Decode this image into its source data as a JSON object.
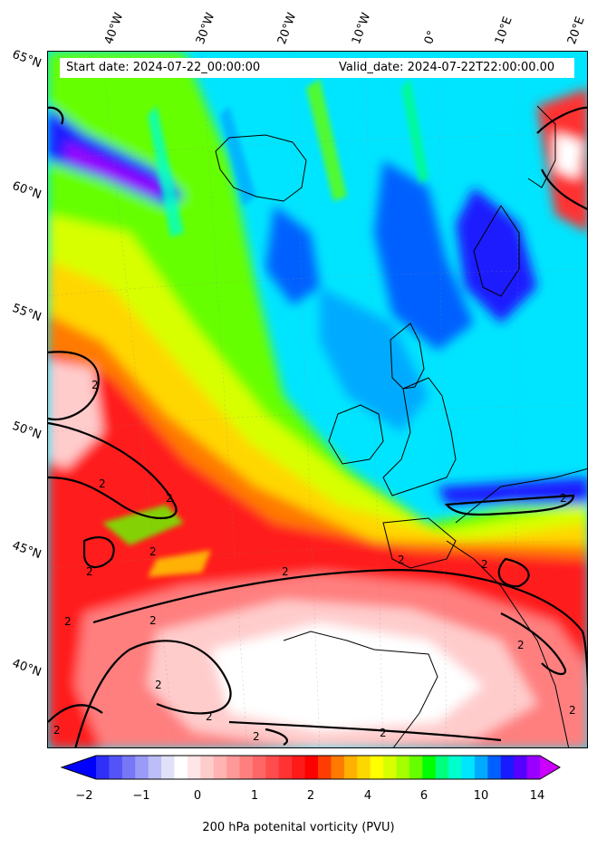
{
  "header": {
    "start_date": "Start date: 2024-07-22_00:00:00",
    "valid_date": "Valid_date: 2024-07-22T22:00:00.00"
  },
  "longitude_labels": [
    "40°W",
    "30°W",
    "20°W",
    "10°W",
    "0°",
    "10°E",
    "20°E"
  ],
  "latitude_labels": [
    "65°N",
    "60°N",
    "55°N",
    "50°N",
    "45°N",
    "40°N"
  ],
  "colorbar": {
    "title": "200 hPa potenital vorticity (PVU)",
    "tick_labels": [
      "−2",
      "−1",
      "0",
      "1",
      "2",
      "4",
      "6",
      "10",
      "14"
    ],
    "colors": [
      "#0000ff",
      "#2f2ff7",
      "#5353f7",
      "#7777f7",
      "#9a9af7",
      "#bdbdf7",
      "#e0e0f7",
      "#ffffff",
      "#ffe6e6",
      "#ffcccc",
      "#ffb3b3",
      "#ff9999",
      "#ff7f7f",
      "#ff6666",
      "#ff4c4c",
      "#ff3333",
      "#ff1a1a",
      "#ff0000",
      "#ff3d00",
      "#ff7a00",
      "#ffb000",
      "#ffd700",
      "#ffff00",
      "#d8ff00",
      "#a6ff00",
      "#66ff00",
      "#00ff00",
      "#00ff7f",
      "#00ffcc",
      "#00e5ff",
      "#00aaff",
      "#0060ff",
      "#1a1aff",
      "#5500ff",
      "#9900ff",
      "#cc00ff"
    ]
  },
  "contour_label": "2",
  "map": {
    "variable": "200 hPa potential vorticity",
    "contour_level": 2
  }
}
